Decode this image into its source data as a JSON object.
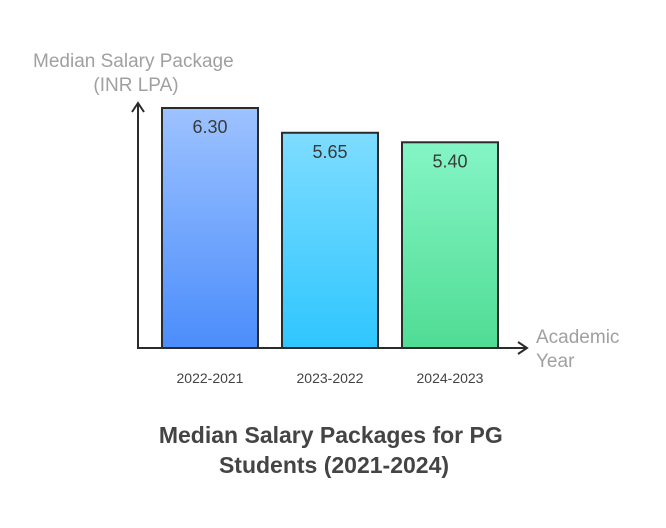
{
  "chart_data": {
    "type": "bar",
    "title": "Median Salary Packages for PG Students (2021-2024)",
    "title_lines": [
      "Median Salary Packages for PG",
      "Students (2021-2024)"
    ],
    "ylabel": "Median Salary Package (INR LPA)",
    "ylabel_lines": [
      "Median Salary Package",
      "(INR LPA)"
    ],
    "xlabel": "Academic Year",
    "xlabel_lines": [
      "Academic",
      "Year"
    ],
    "categories": [
      "2022-2021",
      "2023-2022",
      "2024-2023"
    ],
    "values": [
      6.3,
      5.65,
      5.4
    ],
    "value_labels": [
      "6.30",
      "5.65",
      "5.40"
    ],
    "ylim": [
      0,
      6.3
    ],
    "grid": false,
    "legend": "none",
    "bar_colors": [
      {
        "top": "#9dc2ff",
        "bottom": "#4b8dfb"
      },
      {
        "top": "#7fdcff",
        "bottom": "#2ec6ff"
      },
      {
        "top": "#84f5c5",
        "bottom": "#50dc94"
      }
    ],
    "stroke_color": "#2b2b2b"
  }
}
